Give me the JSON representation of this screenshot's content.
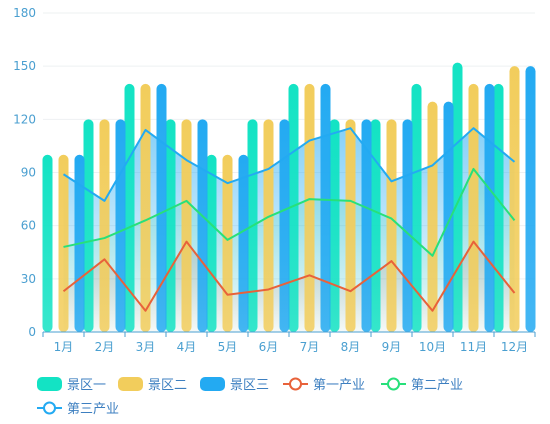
{
  "chart_data": {
    "type": "bar",
    "categories": [
      "1月",
      "2月",
      "3月",
      "4月",
      "5月",
      "6月",
      "7月",
      "8月",
      "9月",
      "10月",
      "11月",
      "12月"
    ],
    "ylim": [
      0,
      180
    ],
    "yticks": [
      0,
      30,
      60,
      90,
      120,
      150,
      180
    ],
    "grid": true,
    "legend_position": "bottom-left",
    "bar_series": [
      {
        "name": "景区一",
        "color": "#13e3c4",
        "values": [
          100,
          120,
          140,
          120,
          100,
          120,
          140,
          120,
          120,
          140,
          152,
          140
        ]
      },
      {
        "name": "景区二",
        "color": "#f2cd5c",
        "values": [
          100,
          120,
          140,
          120,
          100,
          120,
          140,
          120,
          120,
          130,
          140,
          150
        ]
      },
      {
        "name": "景区三",
        "color": "#23aaf2",
        "values": [
          100,
          120,
          140,
          120,
          100,
          120,
          140,
          120,
          120,
          130,
          140,
          150
        ]
      }
    ],
    "line_series": [
      {
        "name": "第一产业",
        "color": "#e8623a",
        "values": [
          23,
          41,
          12,
          51,
          21,
          24,
          32,
          23,
          40,
          12,
          51,
          22
        ]
      },
      {
        "name": "第二产业",
        "color": "#27e07a",
        "values": [
          48,
          53,
          63,
          74,
          52,
          65,
          75,
          74,
          64,
          43,
          92,
          63
        ]
      },
      {
        "name": "第三产业",
        "color": "#23aaf2",
        "values": [
          89,
          74,
          114,
          97,
          84,
          92,
          108,
          115,
          85,
          94,
          115,
          96
        ]
      }
    ]
  },
  "colors": {
    "axis": "#4a9fd0",
    "label": "#4a9fd0",
    "grid": "#eef0f2",
    "legend_text": "#3d7fc0"
  }
}
